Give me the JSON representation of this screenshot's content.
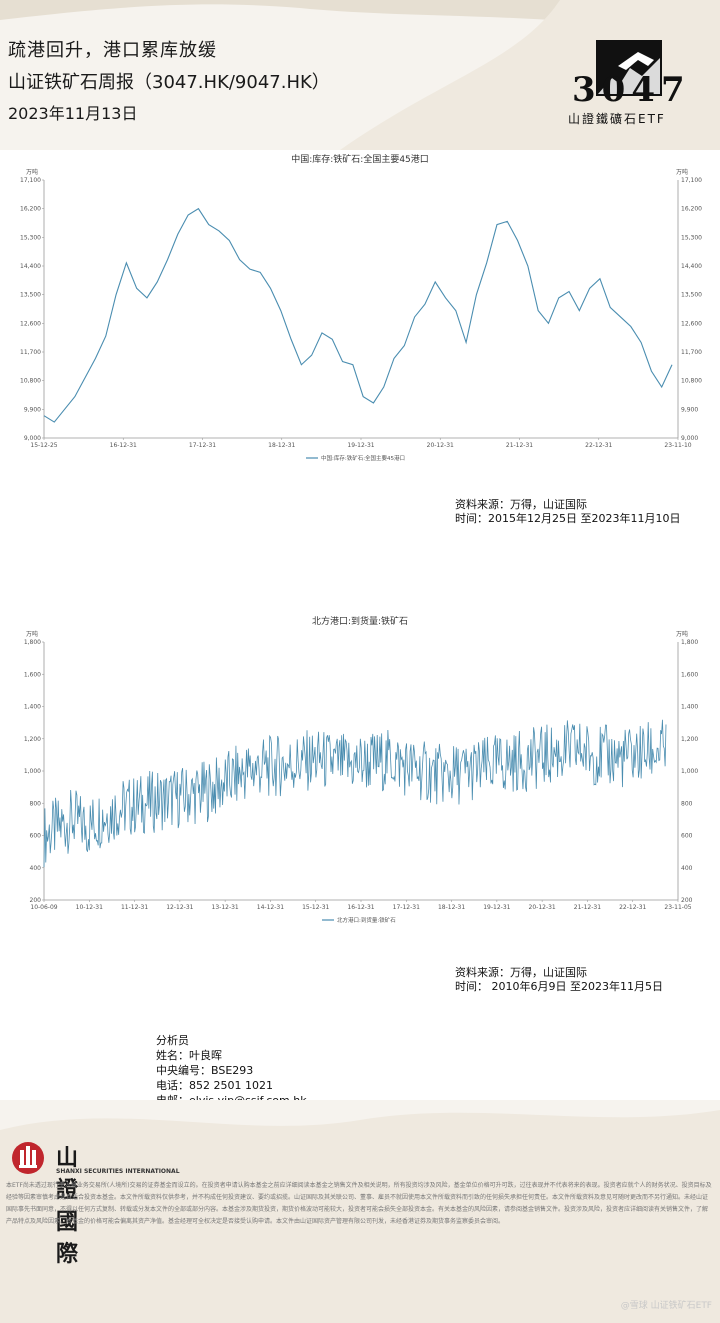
{
  "header": {
    "title_line1": "疏港回升，港口累库放缓",
    "title_line2": "山证铁矿石周报（3047.HK/9047.HK）",
    "date": "2023年11月13日"
  },
  "logo": {
    "code": "3047",
    "name": "山證鐵礦石ETF"
  },
  "colors": {
    "line": "#4a8db0",
    "axis": "#999999",
    "band": "#f6f3ee"
  },
  "chart_data": [
    {
      "type": "line",
      "title": "中国:库存:铁矿石:全国主要45港口",
      "unit": "万吨",
      "x_ticks": [
        "15-12-25",
        "16-12-31",
        "17-12-31",
        "18-12-31",
        "19-12-31",
        "20-12-31",
        "21-12-31",
        "22-12-31",
        "23-11-10"
      ],
      "y_ticks": [
        "9,000",
        "9,900",
        "10,800",
        "11,700",
        "12,600",
        "13,500",
        "14,400",
        "15,300",
        "16,200",
        "17,100"
      ],
      "ylim": [
        9000,
        17100
      ],
      "legend": "中国:库存:铁矿石:全国主要45港口",
      "series_values": [
        9700,
        9500,
        9900,
        10300,
        10900,
        11500,
        12200,
        13500,
        14500,
        13700,
        13400,
        13900,
        14600,
        15400,
        16000,
        16200,
        15700,
        15500,
        15200,
        14600,
        14300,
        14200,
        13700,
        13000,
        12100,
        11300,
        11600,
        12300,
        12100,
        11400,
        11300,
        10300,
        10100,
        10600,
        11500,
        11900,
        12800,
        13200,
        13900,
        13400,
        13000,
        12000,
        13500,
        14500,
        15700,
        15800,
        15200,
        14400,
        13000,
        12600,
        13400,
        13600,
        13000,
        13700,
        14000,
        13100,
        12800,
        12500,
        12000,
        11100,
        10600,
        11300
      ]
    },
    {
      "type": "line",
      "title": "北方港口:到货量:铁矿石",
      "unit": "万吨",
      "x_ticks": [
        "10-06-09",
        "10-12-31",
        "11-12-31",
        "12-12-31",
        "13-12-31",
        "14-12-31",
        "15-12-31",
        "16-12-31",
        "17-12-31",
        "18-12-31",
        "19-12-31",
        "20-12-31",
        "21-12-31",
        "22-12-31",
        "23-11-05"
      ],
      "y_ticks": [
        "200",
        "400",
        "600",
        "800",
        "1,000",
        "1,200",
        "1,400",
        "1,600",
        "1,800"
      ],
      "ylim": [
        200,
        1800
      ],
      "legend": "北方港口:到货量:铁矿石",
      "series_values": [
        600,
        650,
        700,
        650,
        720,
        760,
        780,
        800,
        820,
        830,
        850,
        870,
        900,
        950,
        1000,
        1020,
        1030,
        1040,
        1060,
        1070,
        1050,
        1040,
        1050,
        1060,
        1070,
        1030,
        1000,
        980,
        970,
        990,
        1010,
        1030,
        1050,
        1060,
        1080,
        1100,
        1120,
        1130,
        1100,
        1090,
        1080,
        1100,
        1120,
        1130
      ],
      "series_spread": 140
    }
  ],
  "source1": {
    "line1": "资料来源：万得，山证国际",
    "line2": "时间：2015年12月25日 至2023年11月10日"
  },
  "source2": {
    "line1": "资料来源：万得，山证国际",
    "line2": "时间： 2010年6月9日 至2023年11月5日"
  },
  "analyst": {
    "heading": "分析员",
    "name": "姓名：叶良晖",
    "id": "中央编号：BSE293",
    "phone": "电话：852 2501 1021",
    "email": "电邮：elvis.yip@ssif.com.hk"
  },
  "brand": {
    "cn": "山證國際",
    "en": "SHANXI SECURITIES INTERNATIONAL"
  },
  "disclaimer": "本ETF尚未透过现行于人境业务交易所(人境所)交易的证券基金而设立的。在投资者申请认购本基金之前应详细阅读本基金之销售文件及相关说明，所有投资均涉及风险，基金单位价格可升可跌，过往表现并不代表将来的表现。投资者应就个人的财务状况、投资目标及经验等因素审慎考虑是否适合投资本基金。本文件所载资料仅供参考，并不构成任何投资建议、要约或招揽。山证国际及其关联公司、董事、雇员不就因使用本文件所载资料而引致的任何损失承担任何责任。本文件所载资料及意见可随时更改而不另行通知。未经山证国际事先书面同意，不得以任何方式复制、转载或分发本文件的全部或部分内容。本基金涉及期货投资，期货价格波动可能较大，投资者可能会损失全部投资本金。有关本基金的风险因素，请参阅基金销售文件。投资涉及风险，投资者应详细阅读有关销售文件，了解产品特点及风险因素。本基金的价格可能会偏离其资产净值。基金经理可全权决定是否接受认购申请。本文件由山证国际资产管理有限公司刊发，未经香港证券及期货事务监察委员会审阅。",
  "watermark": "@雪球 山证铁矿石ETF"
}
